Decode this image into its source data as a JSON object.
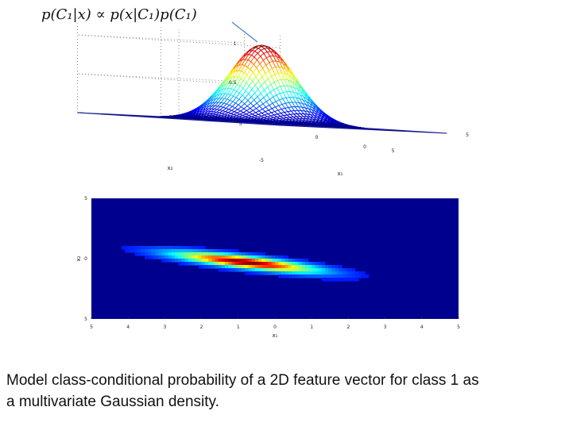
{
  "formula": {
    "text": "p(C₁|x) ∝ p(x|C₁)p(C₁)"
  },
  "caption": {
    "line1": "Model class-conditional probability of a 2D feature vector for class 1 as",
    "line2": "a multivariate Gaussian density."
  },
  "chart_data": [
    {
      "type": "surface",
      "description_hint": "3D mesh surface of 2D Gaussian density",
      "z_ticks": [
        "0",
        "0.5",
        "1"
      ],
      "x_ticks": [
        "-5",
        "0",
        "5"
      ],
      "y_ticks": [
        "5",
        "0",
        "5"
      ],
      "xlabel": "x₁",
      "ylabel": "x₂",
      "zlim": [
        0,
        1
      ],
      "peak": 1,
      "grid": true
    },
    {
      "type": "heatmap",
      "xlabel": "x₁",
      "ylabel": "x₂",
      "x_ticks": [
        "5",
        "4",
        "3",
        "2",
        "1",
        "0",
        "1",
        "2",
        "3",
        "4",
        "5"
      ],
      "y_ticks": [
        "5",
        "0",
        "5"
      ],
      "xlim": [
        -5,
        5
      ],
      "ylim": [
        -5,
        5
      ],
      "colormap": "jet",
      "mean": [
        -0.8,
        -0.3
      ],
      "covariance": [
        [
          1.6,
          -0.55
        ],
        [
          -0.55,
          0.3
        ]
      ],
      "background_color": "#00008f"
    }
  ]
}
